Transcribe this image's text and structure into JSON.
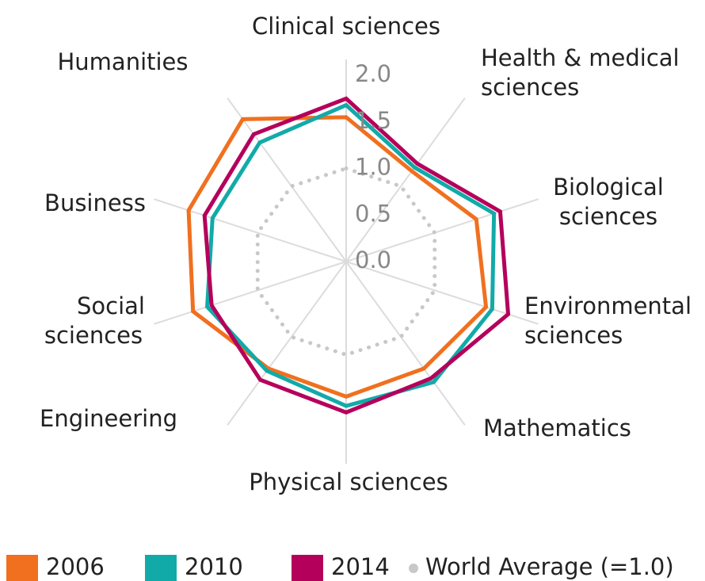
{
  "chart_data": {
    "type": "radar",
    "categories": [
      [
        "Clinical sciences"
      ],
      [
        "Health & medical",
        "sciences"
      ],
      [
        "Biological",
        "sciences"
      ],
      [
        "Environmental",
        "sciences"
      ],
      [
        "Mathematics"
      ],
      [
        "Physical sciences"
      ],
      [
        "Engineering"
      ],
      [
        "Social",
        "sciences"
      ],
      [
        "Business"
      ],
      [
        "Humanities"
      ]
    ],
    "series": [
      {
        "name": "2006",
        "color": "#f07020",
        "values": [
          1.55,
          1.2,
          1.47,
          1.58,
          1.42,
          1.45,
          1.42,
          1.73,
          1.78,
          1.89
        ]
      },
      {
        "name": "2010",
        "color": "#12aaa8",
        "values": [
          1.68,
          1.25,
          1.67,
          1.65,
          1.6,
          1.55,
          1.45,
          1.57,
          1.51,
          1.58
        ]
      },
      {
        "name": "2014",
        "color": "#b5005b",
        "values": [
          1.75,
          1.3,
          1.74,
          1.83,
          1.55,
          1.62,
          1.57,
          1.52,
          1.6,
          1.69
        ]
      }
    ],
    "reference": {
      "name": "World Average (=1.0)",
      "value": 1.0,
      "color": "#c8c8c8"
    },
    "rlim": [
      0,
      2
    ],
    "rticks": [
      {
        "value": 0,
        "label": "0.0"
      },
      {
        "value": 0.5,
        "label": "0.5"
      },
      {
        "value": 1,
        "label": "1.0"
      },
      {
        "value": 1.5,
        "label": "1.5"
      },
      {
        "value": 2,
        "label": "2.0"
      }
    ]
  }
}
